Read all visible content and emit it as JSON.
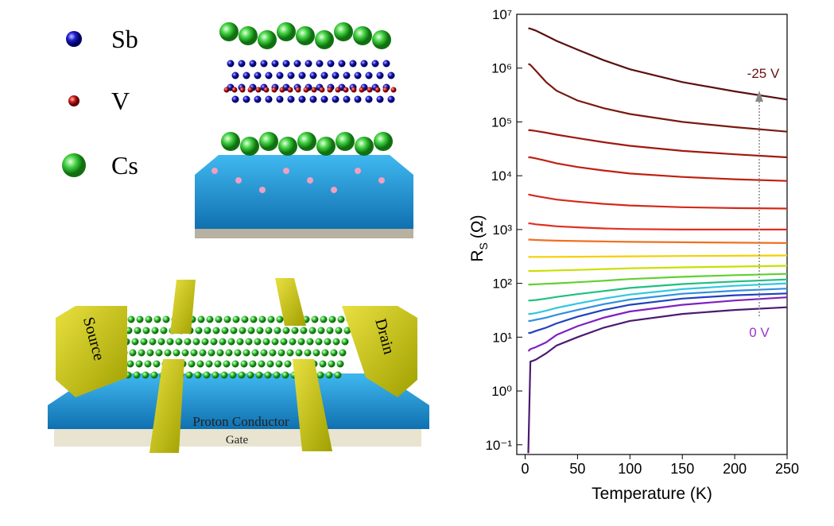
{
  "chart_data": {
    "type": "line",
    "xlabel": "Temperature (K)",
    "ylabel": "R",
    "ylabel_sub": "S",
    "ylabel_unit": "(Ω)",
    "log_y": true,
    "xlim": [
      -8,
      250
    ],
    "ylim": [
      0.066,
      10000000
    ],
    "xticks": [
      0,
      50,
      100,
      150,
      200,
      250
    ],
    "yticks": [
      {
        "value": 0.1,
        "label": "10⁻¹"
      },
      {
        "value": 1,
        "label": "10⁰"
      },
      {
        "value": 10,
        "label": "10¹"
      },
      {
        "value": 100,
        "label": "10²"
      },
      {
        "value": 1000,
        "label": "10³"
      },
      {
        "value": 10000,
        "label": "10⁴"
      },
      {
        "value": 100000,
        "label": "10⁵"
      },
      {
        "value": 1000000,
        "label": "10⁶"
      },
      {
        "value": 10000000,
        "label": "10⁷"
      }
    ],
    "x": [
      3,
      5,
      10,
      20,
      30,
      50,
      75,
      100,
      150,
      200,
      250
    ],
    "series": [
      {
        "color": "#5a1010",
        "values": [
          5500000,
          5400000,
          5000000,
          4000000,
          3200000,
          2200000,
          1400000,
          950000,
          550000,
          370000,
          260000
        ]
      },
      {
        "color": "#7a1a10",
        "values": [
          1200000,
          1150000,
          900000,
          550000,
          380000,
          250000,
          180000,
          140000,
          100000,
          80000,
          66000
        ]
      },
      {
        "color": "#a01810",
        "values": [
          70000,
          70000,
          68000,
          63000,
          58000,
          50000,
          42000,
          36000,
          29000,
          25000,
          22000
        ]
      },
      {
        "color": "#c02010",
        "values": [
          22000,
          22000,
          21000,
          19000,
          17000,
          14500,
          12500,
          11000,
          9500,
          8600,
          8000
        ]
      },
      {
        "color": "#d42a1a",
        "values": [
          4500,
          4400,
          4200,
          3900,
          3600,
          3300,
          3000,
          2800,
          2600,
          2500,
          2450
        ]
      },
      {
        "color": "#e03020",
        "values": [
          1300,
          1300,
          1250,
          1200,
          1150,
          1100,
          1050,
          1020,
          1000,
          1000,
          1000
        ]
      },
      {
        "color": "#f07020",
        "values": [
          650,
          650,
          640,
          630,
          620,
          610,
          600,
          590,
          580,
          570,
          560
        ]
      },
      {
        "color": "#f5d000",
        "values": [
          310,
          310,
          310,
          310,
          310,
          312,
          315,
          318,
          322,
          326,
          330
        ]
      },
      {
        "color": "#c8e000",
        "values": [
          170,
          170,
          170,
          172,
          174,
          178,
          184,
          190,
          198,
          205,
          212
        ]
      },
      {
        "color": "#60d030",
        "values": [
          95,
          95,
          96,
          98,
          100,
          105,
          112,
          120,
          132,
          142,
          150
        ]
      },
      {
        "color": "#20c080",
        "values": [
          48,
          48,
          49,
          52,
          56,
          63,
          72,
          82,
          97,
          108,
          118
        ]
      },
      {
        "color": "#30c8e0",
        "values": [
          27,
          27,
          28,
          31,
          35,
          42,
          52,
          62,
          78,
          90,
          100
        ]
      },
      {
        "color": "#3090e0",
        "values": [
          20,
          20,
          21,
          23,
          26,
          32,
          41,
          50,
          64,
          73,
          80
        ]
      },
      {
        "color": "#2040c0",
        "values": [
          12,
          12,
          13,
          15,
          18,
          24,
          32,
          40,
          52,
          60,
          65
        ]
      },
      {
        "color": "#8020c0",
        "values": [
          5.5,
          6,
          6.5,
          8,
          11,
          16,
          23,
          30,
          40,
          48,
          55
        ]
      },
      {
        "color": "#4a1a70",
        "values": [
          0.07,
          3.5,
          3.8,
          5,
          7,
          10,
          15,
          20,
          27,
          32,
          36
        ]
      }
    ],
    "annotations": [
      {
        "text": "-25 V",
        "color": "#6a1010"
      },
      {
        "text": "0 V",
        "color": "#9933cc"
      }
    ]
  },
  "illustration": {
    "legend": [
      "Sb",
      "V",
      "Cs"
    ],
    "device": {
      "source": "Source",
      "drain": "Drain",
      "conductor": "Proton Conductor",
      "gate": "Gate"
    }
  }
}
